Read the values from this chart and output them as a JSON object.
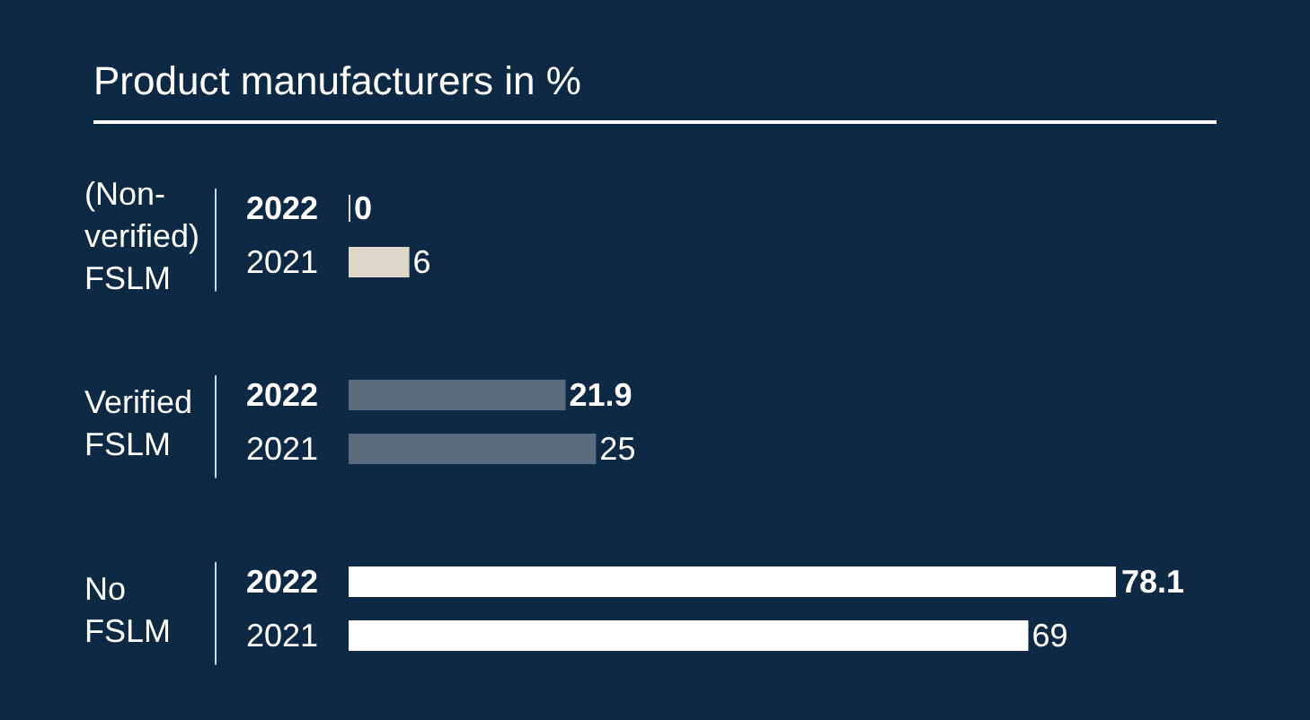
{
  "chart_data": {
    "type": "bar",
    "orientation": "horizontal",
    "title": "Product manufacturers in %",
    "categories": [
      "(Non-verified) FSLM",
      "Verified FSLM",
      "No FSLM"
    ],
    "series": [
      {
        "name": "2022",
        "colors": [
          "#ddd7ca",
          "#5b6b7d",
          "#ffffff"
        ],
        "values": [
          0,
          21.9,
          78.1
        ]
      },
      {
        "name": "2021",
        "colors": [
          "#ddd7ca",
          "#5b6b7d",
          "#ffffff"
        ],
        "values": [
          6,
          25,
          69
        ]
      }
    ],
    "data_labels": true
  }
}
